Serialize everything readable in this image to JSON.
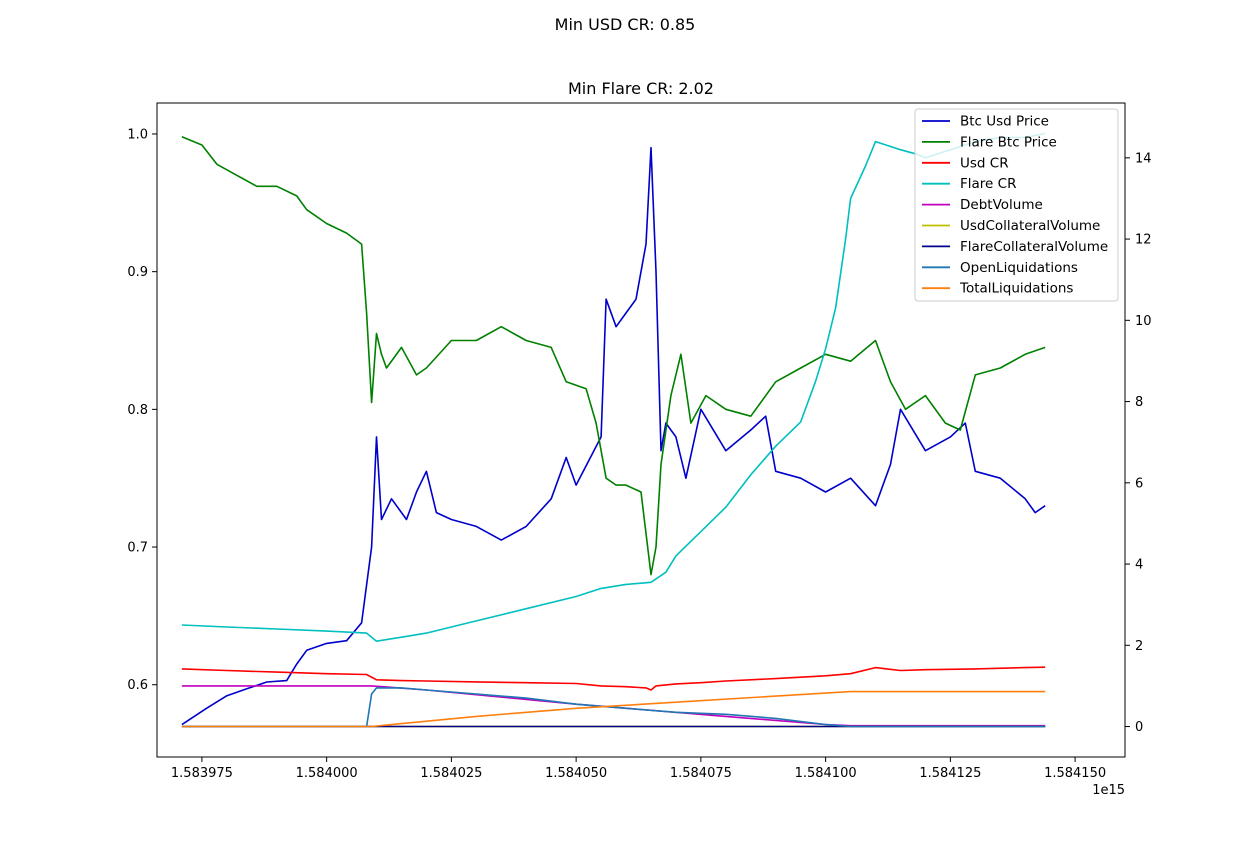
{
  "chart_data": {
    "type": "line",
    "suptitle": "Min USD CR: 0.85",
    "title": "Min Flare CR: 2.02",
    "x_offset_label": "1e15",
    "x_tick_labels": [
      "1.583975",
      "1.584000",
      "1.584025",
      "1.584050",
      "1.584075",
      "1.584100",
      "1.584125",
      "1.584150"
    ],
    "x_ticks": [
      1.583975,
      1.584,
      1.584025,
      1.58405,
      1.584075,
      1.5841,
      1.584125,
      1.58415
    ],
    "xlim": [
      1.583966,
      1.58416
    ],
    "y_left": {
      "ticks": [
        0.6,
        0.7,
        0.8,
        0.9,
        1.0
      ],
      "tick_labels": [
        "0.6",
        "0.7",
        "0.8",
        "0.9",
        "1.0"
      ],
      "ylim": [
        0.5475,
        1.0225
      ]
    },
    "y_right": {
      "ticks": [
        0,
        2,
        4,
        6,
        8,
        10,
        12,
        14
      ],
      "tick_labels": [
        "0",
        "2",
        "4",
        "6",
        "8",
        "10",
        "12",
        "14"
      ],
      "ylim": [
        -0.75,
        15.35
      ]
    },
    "legend_position": "top-right",
    "series": [
      {
        "name": "Btc Usd Price",
        "axis": "left",
        "color": "#0000cc",
        "x": [
          1.583971,
          1.583976,
          1.58398,
          1.583984,
          1.583988,
          1.583992,
          1.583994,
          1.583996,
          1.584,
          1.584004,
          1.584007,
          1.584009,
          1.58401,
          1.584011,
          1.584013,
          1.584016,
          1.584018,
          1.58402,
          1.584022,
          1.584025,
          1.58403,
          1.584035,
          1.58404,
          1.584045,
          1.584048,
          1.58405,
          1.584055,
          1.584056,
          1.584058,
          1.58406,
          1.584062,
          1.584064,
          1.584065,
          1.584066,
          1.584067,
          1.584068,
          1.58407,
          1.584072,
          1.584075,
          1.58408,
          1.584085,
          1.584088,
          1.58409,
          1.584095,
          1.5841,
          1.584105,
          1.58411,
          1.584113,
          1.584115,
          1.58412,
          1.584125,
          1.584128,
          1.58413,
          1.584135,
          1.58414,
          1.584142,
          1.584144
        ],
        "y": [
          0.571,
          0.583,
          0.592,
          0.597,
          0.602,
          0.603,
          0.615,
          0.625,
          0.63,
          0.632,
          0.645,
          0.7,
          0.78,
          0.72,
          0.735,
          0.72,
          0.74,
          0.755,
          0.725,
          0.72,
          0.715,
          0.705,
          0.715,
          0.735,
          0.765,
          0.745,
          0.78,
          0.88,
          0.86,
          0.87,
          0.88,
          0.92,
          0.99,
          0.9,
          0.77,
          0.79,
          0.78,
          0.75,
          0.8,
          0.77,
          0.785,
          0.795,
          0.755,
          0.75,
          0.74,
          0.75,
          0.73,
          0.76,
          0.8,
          0.77,
          0.78,
          0.79,
          0.755,
          0.75,
          0.735,
          0.725,
          0.73
        ]
      },
      {
        "name": "Flare Btc Price",
        "axis": "left",
        "color": "#008000",
        "x": [
          1.583971,
          1.583975,
          1.583978,
          1.583982,
          1.583986,
          1.58399,
          1.583994,
          1.583996,
          1.584,
          1.584004,
          1.584007,
          1.584008,
          1.584009,
          1.58401,
          1.584011,
          1.584012,
          1.584015,
          1.584018,
          1.58402,
          1.584025,
          1.58403,
          1.584035,
          1.58404,
          1.584045,
          1.584048,
          1.584052,
          1.584054,
          1.584056,
          1.584058,
          1.58406,
          1.584063,
          1.584065,
          1.584066,
          1.584067,
          1.584069,
          1.584071,
          1.584073,
          1.584076,
          1.58408,
          1.584085,
          1.58409,
          1.584095,
          1.5841,
          1.584105,
          1.58411,
          1.584113,
          1.584116,
          1.58412,
          1.584124,
          1.584127,
          1.58413,
          1.584135,
          1.58414,
          1.584144
        ],
        "y": [
          0.998,
          0.992,
          0.978,
          0.97,
          0.962,
          0.962,
          0.955,
          0.945,
          0.935,
          0.928,
          0.92,
          0.87,
          0.805,
          0.855,
          0.84,
          0.83,
          0.845,
          0.825,
          0.83,
          0.85,
          0.85,
          0.86,
          0.85,
          0.845,
          0.82,
          0.815,
          0.79,
          0.75,
          0.745,
          0.745,
          0.74,
          0.68,
          0.7,
          0.76,
          0.81,
          0.84,
          0.79,
          0.81,
          0.8,
          0.795,
          0.82,
          0.83,
          0.84,
          0.835,
          0.85,
          0.82,
          0.8,
          0.81,
          0.79,
          0.785,
          0.825,
          0.83,
          0.84,
          0.845
        ]
      },
      {
        "name": "Usd CR",
        "axis": "right",
        "color": "#ff0000",
        "x": [
          1.583971,
          1.58398,
          1.58399,
          1.584,
          1.584008,
          1.58401,
          1.584015,
          1.58402,
          1.58403,
          1.58404,
          1.58405,
          1.584055,
          1.58406,
          1.584064,
          1.584065,
          1.584066,
          1.58407,
          1.584075,
          1.58408,
          1.58409,
          1.5841,
          1.584105,
          1.58411,
          1.584115,
          1.58412,
          1.58413,
          1.58414,
          1.584144
        ],
        "y": [
          1.42,
          1.38,
          1.34,
          1.3,
          1.28,
          1.15,
          1.13,
          1.12,
          1.1,
          1.08,
          1.06,
          1.0,
          0.98,
          0.95,
          0.9,
          1.0,
          1.05,
          1.08,
          1.12,
          1.18,
          1.25,
          1.3,
          1.45,
          1.38,
          1.4,
          1.42,
          1.45,
          1.46
        ]
      },
      {
        "name": "Flare CR",
        "axis": "right",
        "color": "#00bfbf",
        "x": [
          1.583971,
          1.58398,
          1.58399,
          1.584,
          1.584008,
          1.58401,
          1.584015,
          1.58402,
          1.58403,
          1.58404,
          1.58405,
          1.584055,
          1.58406,
          1.584065,
          1.584068,
          1.58407,
          1.584075,
          1.58408,
          1.584085,
          1.58409,
          1.584095,
          1.584098,
          1.5841,
          1.584102,
          1.584104,
          1.584105,
          1.584108,
          1.58411,
          1.584115,
          1.584118,
          1.58412,
          1.584125,
          1.58413,
          1.584135,
          1.58414,
          1.584144
        ],
        "y": [
          2.5,
          2.45,
          2.4,
          2.35,
          2.3,
          2.1,
          2.2,
          2.3,
          2.6,
          2.9,
          3.2,
          3.4,
          3.5,
          3.55,
          3.8,
          4.2,
          4.8,
          5.4,
          6.2,
          6.9,
          7.5,
          8.5,
          9.3,
          10.3,
          12.0,
          13.0,
          13.8,
          14.4,
          14.2,
          14.1,
          14.0,
          14.2,
          14.4,
          14.5,
          14.5,
          14.6
        ]
      },
      {
        "name": "DebtVolume",
        "axis": "right",
        "color": "#bf00bf",
        "x": [
          1.583971,
          1.584009,
          1.58402,
          1.58405,
          1.58408,
          1.5841,
          1.584105,
          1.584144
        ],
        "y": [
          1.0,
          1.0,
          0.9,
          0.55,
          0.25,
          0.05,
          0.02,
          0.02
        ]
      },
      {
        "name": "UsdCollateralVolume",
        "axis": "right",
        "color": "#bfbf00",
        "x": [
          1.583971,
          1.584144
        ],
        "y": [
          0.0,
          0.0
        ]
      },
      {
        "name": "FlareCollateralVolume",
        "axis": "right",
        "color": "#00008b",
        "x": [
          1.583971,
          1.584144
        ],
        "y": [
          0.0,
          0.0
        ]
      },
      {
        "name": "OpenLiquidations",
        "axis": "right",
        "color": "#1f77b4",
        "x": [
          1.583971,
          1.584008,
          1.584009,
          1.58401,
          1.584015,
          1.58402,
          1.58403,
          1.58404,
          1.58405,
          1.58406,
          1.58407,
          1.58408,
          1.58409,
          1.5841,
          1.584105,
          1.584144
        ],
        "y": [
          0.0,
          0.0,
          0.8,
          0.95,
          0.95,
          0.9,
          0.8,
          0.7,
          0.55,
          0.45,
          0.35,
          0.3,
          0.2,
          0.05,
          0.0,
          0.0
        ]
      },
      {
        "name": "TotalLiquidations",
        "axis": "right",
        "color": "#ff7f0e",
        "x": [
          1.583971,
          1.584009,
          1.58403,
          1.58405,
          1.58407,
          1.58409,
          1.584105,
          1.584144
        ],
        "y": [
          0.0,
          0.0,
          0.25,
          0.45,
          0.6,
          0.75,
          0.86,
          0.86
        ]
      }
    ]
  }
}
